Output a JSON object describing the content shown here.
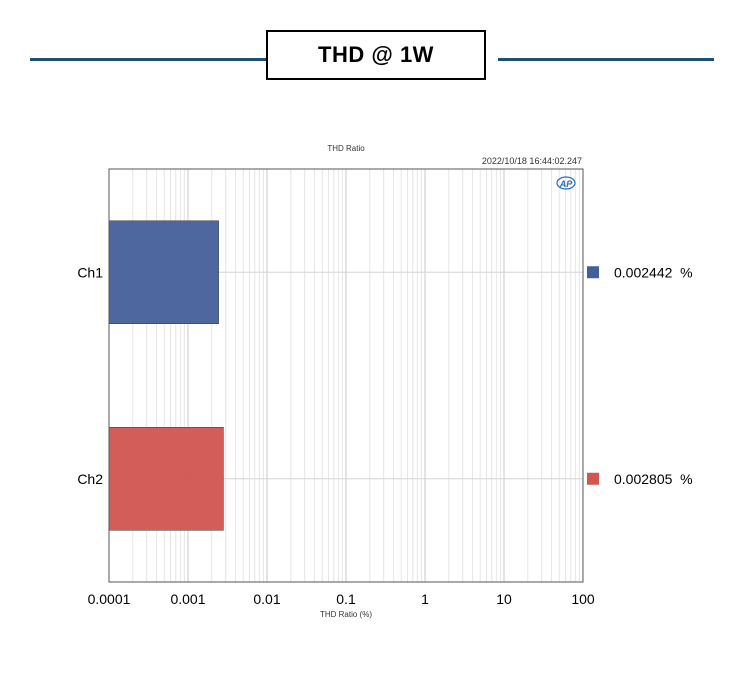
{
  "header": {
    "title": "THD @ 1W"
  },
  "chart_data": {
    "type": "bar",
    "orientation": "horizontal",
    "title": "THD Ratio",
    "timestamp": "2022/10/18 16:44:02.247",
    "logo_text": "AP",
    "xlabel": "THD Ratio (%)",
    "xscale": "log",
    "xlim": [
      0.0001,
      100
    ],
    "xticks": [
      "0.0001",
      "0.001",
      "0.01",
      "0.1",
      "1",
      "10",
      "100"
    ],
    "grid": true,
    "categories": [
      "Ch1",
      "Ch2"
    ],
    "values": [
      0.002442,
      0.002805
    ],
    "value_labels": [
      "0.002442  %",
      "0.002805  %"
    ],
    "colors": [
      "#44609a",
      "#d15550"
    ],
    "legend_placement": "right"
  }
}
